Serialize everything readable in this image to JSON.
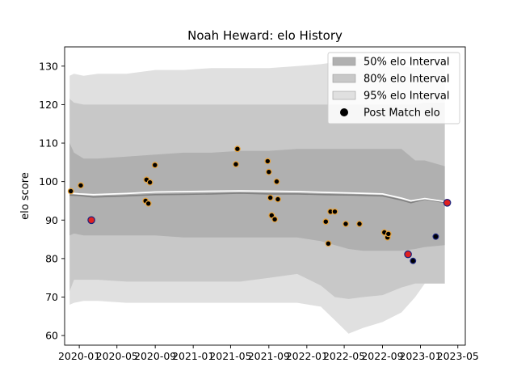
{
  "chart_data": {
    "type": "line",
    "title": "Noah Heward: elo History",
    "xlabel": "",
    "ylabel": "elo score",
    "ylim": [
      57.5,
      135
    ],
    "yticks": [
      60,
      70,
      80,
      90,
      100,
      110,
      120,
      130
    ],
    "xlim": [
      "2019-11-15",
      "2023-05-25"
    ],
    "xticks": [
      "2020-01",
      "2020-05",
      "2020-09",
      "2021-01",
      "2021-05",
      "2021-09",
      "2022-01",
      "2022-05",
      "2022-09",
      "2023-01",
      "2023-05"
    ],
    "grid": false,
    "legend_position": "top-right",
    "legend": [
      {
        "label": "50% elo Interval",
        "kind": "patch",
        "color": "#b0b0b0"
      },
      {
        "label": "80% elo Interval",
        "kind": "patch",
        "color": "#c8c8c8"
      },
      {
        "label": "95% elo Interval",
        "kind": "patch",
        "color": "#e0e0e0"
      },
      {
        "label": "Post Match elo",
        "kind": "marker",
        "color": "#000000"
      }
    ],
    "bands": {
      "x": [
        "2019-12-01",
        "2019-12-15",
        "2020-01-15",
        "2020-03-01",
        "2020-06-01",
        "2020-09-01",
        "2020-12-01",
        "2021-03-01",
        "2021-06-01",
        "2021-09-01",
        "2021-12-01",
        "2022-02-15",
        "2022-04-01",
        "2022-05-15",
        "2022-07-01",
        "2022-09-01",
        "2022-11-01",
        "2022-12-15",
        "2023-01-15",
        "2023-03-20"
      ],
      "b95_upper": [
        127.5,
        128,
        127.5,
        128,
        128,
        129,
        129,
        129.5,
        129.5,
        129.5,
        130,
        130.5,
        131,
        131.5,
        132,
        131.5,
        130,
        129.5,
        130,
        131
      ],
      "b95_lower": [
        68,
        68.5,
        69,
        69,
        68.5,
        68.5,
        68.5,
        68.5,
        68.5,
        68.5,
        68.5,
        67.5,
        64,
        60.5,
        62,
        63.5,
        66,
        70,
        73.5,
        73.5
      ],
      "b80_upper": [
        121.5,
        120.5,
        120,
        120,
        120,
        120,
        120,
        120,
        120,
        120,
        120,
        120,
        120,
        120,
        120,
        120,
        120,
        120,
        120.5,
        120.5
      ],
      "b80_lower": [
        71.5,
        74.5,
        74.5,
        74.5,
        74,
        74,
        74,
        74,
        74,
        75,
        76,
        73,
        70,
        69.5,
        70,
        70.5,
        72.5,
        73.5,
        73.5,
        73.5
      ],
      "b50_upper": [
        110,
        107.5,
        106,
        106,
        106.5,
        107,
        107.5,
        107.5,
        108,
        108,
        108.5,
        108.5,
        108.5,
        108.5,
        108.5,
        108.5,
        108.5,
        105.5,
        105.5,
        104
      ],
      "b50_lower": [
        86,
        86.5,
        86,
        86,
        86,
        86,
        85.5,
        85.5,
        85.5,
        85.5,
        85.5,
        84.5,
        83.5,
        82.5,
        82,
        82,
        82,
        82.5,
        83,
        83.5
      ]
    },
    "series": [
      {
        "x": [
          "2019-12-01",
          "2020-01-01",
          "2020-02-15",
          "2020-06-01",
          "2020-09-01",
          "2020-12-01",
          "2021-03-01",
          "2021-06-01",
          "2021-09-01",
          "2021-12-01",
          "2022-03-01",
          "2022-06-01",
          "2022-09-01",
          "2022-11-01",
          "2022-12-01",
          "2023-01-15",
          "2023-03-20"
        ],
        "values": [
          96.5,
          96.4,
          96.0,
          96.3,
          96.6,
          96.7,
          96.8,
          97.0,
          96.8,
          96.8,
          96.6,
          96.5,
          96.3,
          95.2,
          94.5,
          95.4,
          94.6
        ],
        "color": "#808080"
      },
      {
        "x": [
          "2019-12-01",
          "2020-01-01",
          "2020-02-15",
          "2020-06-01",
          "2020-09-01",
          "2020-12-01",
          "2021-03-01",
          "2021-06-01",
          "2021-09-01",
          "2021-12-01",
          "2022-03-01",
          "2022-06-01",
          "2022-09-01",
          "2022-11-01",
          "2022-12-01",
          "2023-01-15",
          "2023-03-20"
        ],
        "values": [
          97.0,
          96.8,
          96.6,
          96.9,
          97.3,
          97.4,
          97.5,
          97.6,
          97.5,
          97.4,
          97.2,
          97.0,
          96.8,
          95.7,
          95.0,
          95.6,
          94.8
        ],
        "color": "#ffffff"
      },
      {
        "name": "Post Match elo",
        "x": [
          "2019-12-05",
          "2020-01-06",
          "2020-02-09",
          "2020-08-01",
          "2020-08-04",
          "2020-08-10",
          "2020-08-15",
          "2020-08-31",
          "2021-05-18",
          "2021-05-23",
          "2021-08-28",
          "2021-09-01",
          "2021-09-06",
          "2021-09-10",
          "2021-09-20",
          "2021-09-26",
          "2021-09-30",
          "2022-03-03",
          "2022-03-11",
          "2022-03-18",
          "2022-04-01",
          "2022-05-06",
          "2022-06-19",
          "2022-09-07",
          "2022-09-17",
          "2022-09-20",
          "2022-11-22",
          "2022-12-08",
          "2023-02-19",
          "2023-03-28"
        ],
        "values": [
          97.5,
          99.0,
          90.0,
          95.0,
          100.5,
          94.3,
          99.8,
          104.3,
          104.5,
          108.5,
          105.3,
          102.5,
          95.8,
          91.2,
          90.2,
          100.0,
          95.4,
          89.6,
          83.9,
          92.2,
          92.2,
          89.0,
          89.0,
          86.8,
          85.5,
          86.4,
          81.1,
          79.4,
          85.7,
          94.5
        ],
        "colors": [
          "#000000",
          "#000000",
          "#e02020",
          "#000000",
          "#000000",
          "#000000",
          "#000000",
          "#000000",
          "#000000",
          "#000000",
          "#000000",
          "#000000",
          "#000000",
          "#000000",
          "#000000",
          "#000000",
          "#000000",
          "#000000",
          "#000000",
          "#000000",
          "#000000",
          "#000000",
          "#000000",
          "#000000",
          "#000000",
          "#000000",
          "#e02020",
          "#000000",
          "#000000",
          "#e02020"
        ],
        "edge_colors": [
          "#e8a33a",
          "#e8a33a",
          "#1a237e",
          "#e8a33a",
          "#e8a33a",
          "#e8a33a",
          "#e8a33a",
          "#e8a33a",
          "#e8a33a",
          "#e8a33a",
          "#e8a33a",
          "#e8a33a",
          "#e8a33a",
          "#e8a33a",
          "#e8a33a",
          "#e8a33a",
          "#e8a33a",
          "#e8a33a",
          "#e8a33a",
          "#e8a33a",
          "#e8a33a",
          "#e8a33a",
          "#e8a33a",
          "#e8a33a",
          "#e8a33a",
          "#e8a33a",
          "#1a237e",
          "#1a237e",
          "#1a237e",
          "#1a237e"
        ]
      }
    ]
  }
}
